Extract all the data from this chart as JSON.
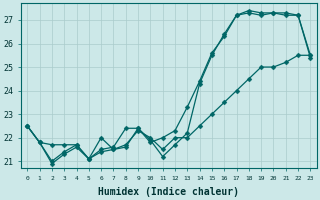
{
  "title": "",
  "xlabel": "Humidex (Indice chaleur)",
  "ylabel": "",
  "bg_color": "#cce8e8",
  "grid_color": "#aacccc",
  "line_color": "#006666",
  "x": [
    0,
    1,
    2,
    3,
    4,
    5,
    6,
    7,
    8,
    9,
    10,
    11,
    12,
    13,
    14,
    15,
    16,
    17,
    18,
    19,
    20,
    21,
    22,
    23
  ],
  "line1": [
    22.5,
    21.8,
    21.7,
    21.7,
    21.7,
    21.1,
    22.0,
    21.5,
    21.7,
    22.3,
    22.0,
    21.5,
    22.0,
    22.0,
    22.5,
    23.0,
    23.5,
    24.0,
    24.5,
    25.0,
    25.0,
    25.2,
    25.5,
    25.5
  ],
  "line2": [
    22.5,
    21.8,
    20.9,
    21.3,
    21.6,
    21.1,
    21.4,
    21.5,
    21.6,
    22.4,
    21.9,
    21.2,
    21.7,
    22.2,
    24.3,
    25.5,
    26.4,
    27.2,
    27.3,
    27.2,
    27.3,
    27.2,
    27.2,
    25.4
  ],
  "line3": [
    22.5,
    21.8,
    21.0,
    21.4,
    21.7,
    21.1,
    21.5,
    21.6,
    22.4,
    22.4,
    21.8,
    22.0,
    22.3,
    23.3,
    24.4,
    25.6,
    26.3,
    27.2,
    27.4,
    27.3,
    27.3,
    27.3,
    27.2,
    25.5
  ],
  "ylim_min": 20.7,
  "ylim_max": 27.7,
  "xlim_min": -0.5,
  "xlim_max": 23.5,
  "yticks": [
    21,
    22,
    23,
    24,
    25,
    26,
    27
  ],
  "xtick_labels": [
    "0",
    "1",
    "2",
    "3",
    "4",
    "5",
    "6",
    "7",
    "8",
    "9",
    "10",
    "11",
    "12",
    "13",
    "14",
    "15",
    "16",
    "17",
    "18",
    "19",
    "20",
    "21",
    "22",
    "23"
  ],
  "marker_size": 2.5,
  "linewidth": 0.9,
  "xlabel_fontsize": 7,
  "ytick_fontsize": 6,
  "xtick_fontsize": 4.5
}
